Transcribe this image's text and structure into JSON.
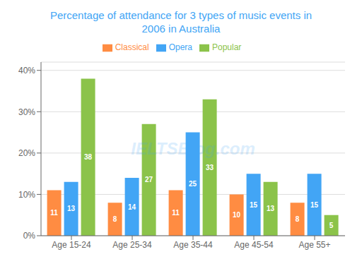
{
  "chart_data": {
    "type": "bar",
    "title": "Percentage of attendance for 3 types of music events in\n2006 in Australia",
    "categories": [
      "Age 15-24",
      "Age 25-34",
      "Age 35-44",
      "Age 45-54",
      "Age 55+"
    ],
    "series": [
      {
        "name": "Classical",
        "color": "#FF8C42",
        "values": [
          11,
          8,
          11,
          10,
          8
        ]
      },
      {
        "name": "Opera",
        "color": "#42A5F5",
        "values": [
          13,
          14,
          25,
          15,
          15
        ]
      },
      {
        "name": "Popular",
        "color": "#8BC34A",
        "values": [
          38,
          27,
          33,
          13,
          5
        ]
      }
    ],
    "ylim": [
      0,
      42
    ],
    "yticks": [
      {
        "value": 0,
        "label": "0%"
      },
      {
        "value": 10,
        "label": "10%"
      },
      {
        "value": 20,
        "label": "20%"
      },
      {
        "value": 30,
        "label": "30%"
      },
      {
        "value": 40,
        "label": "40%"
      }
    ],
    "grid": true,
    "legend": "top",
    "data_labels": true,
    "annotations": [
      "IELTSBlog.com"
    ]
  }
}
